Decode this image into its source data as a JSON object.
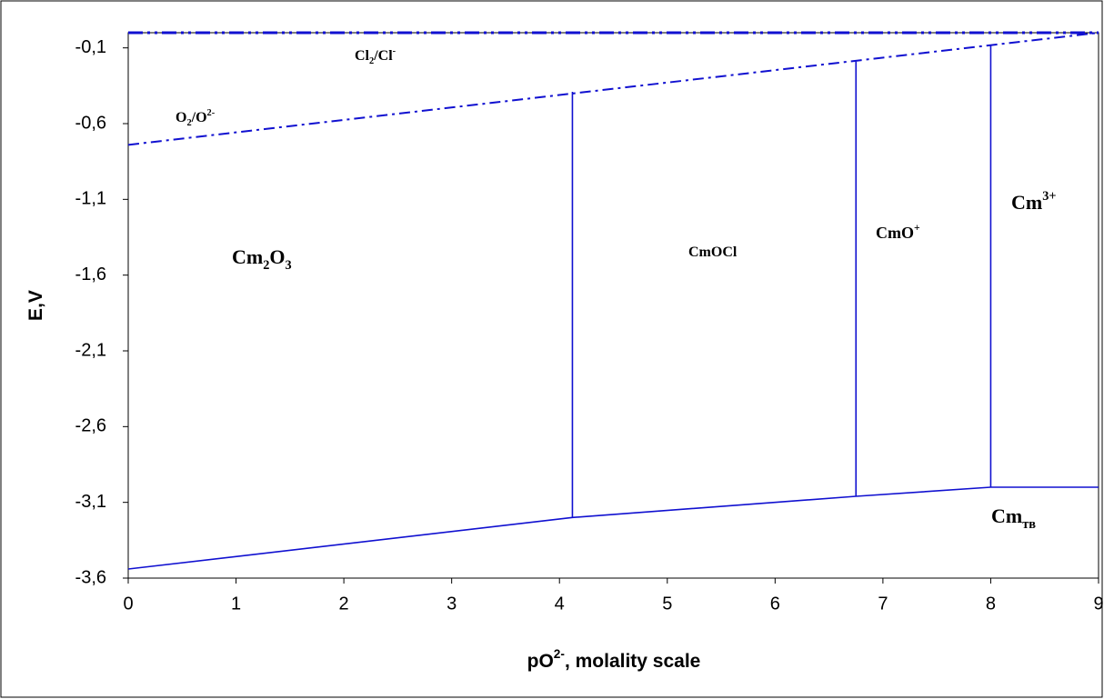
{
  "chart_data": {
    "type": "line",
    "x_label": [
      {
        "text": "pO"
      },
      {
        "text": "2-",
        "shift": "super"
      },
      {
        "text": ", molality scale"
      }
    ],
    "y_label": [
      {
        "text": "E,V"
      }
    ],
    "xlim": [
      0,
      9
    ],
    "xticks": [
      0,
      1,
      2,
      3,
      4,
      5,
      6,
      7,
      8,
      9
    ],
    "ylim": [
      -3.6,
      0
    ],
    "yticks": [
      {
        "value": -3.6,
        "label": "-3,6"
      },
      {
        "value": -3.1,
        "label": "-3,1"
      },
      {
        "value": -2.6,
        "label": "-2,6"
      },
      {
        "value": -2.1,
        "label": "-2,1"
      },
      {
        "value": -1.6,
        "label": "-1,6"
      },
      {
        "value": -1.1,
        "label": "-1,1"
      },
      {
        "value": -0.6,
        "label": "-0,6"
      },
      {
        "value": -0.1,
        "label": "-0,1"
      }
    ],
    "series": [
      {
        "color": "#1010d0",
        "dash": "dashdotdot",
        "x": [
          0,
          9
        ],
        "values": [
          0,
          0
        ]
      },
      {
        "color": "#1010d0",
        "dash": "dashdot",
        "x": [
          0,
          9
        ],
        "values": [
          -0.74,
          0
        ]
      },
      {
        "color": "#1010d0",
        "dash": "solid",
        "x": [
          0,
          4.12,
          6.75,
          8,
          9
        ],
        "values": [
          -3.54,
          -3.2,
          -3.06,
          -3.0,
          -3.0
        ]
      },
      {
        "color": "#1010d0",
        "dash": "solid",
        "x": [
          4.12,
          4.12
        ],
        "values": [
          -3.2,
          -0.39
        ]
      },
      {
        "color": "#1010d0",
        "dash": "solid",
        "x": [
          6.75,
          6.75
        ],
        "values": [
          -3.06,
          -0.19
        ]
      },
      {
        "color": "#1010d0",
        "dash": "solid",
        "x": [
          8,
          8
        ],
        "values": [
          -3.0,
          -0.08
        ]
      }
    ],
    "annotations": [
      {
        "parts": [
          {
            "text": "Cl"
          },
          {
            "text": "2",
            "shift": "sub"
          },
          {
            "text": "/Cl"
          },
          {
            "text": "-",
            "shift": "super"
          }
        ]
      },
      {
        "parts": [
          {
            "text": "O"
          },
          {
            "text": "2",
            "shift": "sub"
          },
          {
            "text": "/O"
          },
          {
            "text": "2-",
            "shift": "super"
          }
        ]
      },
      {
        "parts": [
          {
            "text": "Cm"
          },
          {
            "text": "2",
            "shift": "sub"
          },
          {
            "text": "O"
          },
          {
            "text": "3",
            "shift": "sub"
          }
        ]
      },
      {
        "parts": [
          {
            "text": "CmOCl"
          }
        ]
      },
      {
        "parts": [
          {
            "text": "CmO"
          },
          {
            "text": "+",
            "shift": "super"
          }
        ]
      },
      {
        "parts": [
          {
            "text": "Cm"
          },
          {
            "text": "3+",
            "shift": "super"
          }
        ]
      },
      {
        "parts": [
          {
            "text": "Cm"
          },
          {
            "text": "тв",
            "shift": "sub"
          }
        ]
      }
    ]
  }
}
